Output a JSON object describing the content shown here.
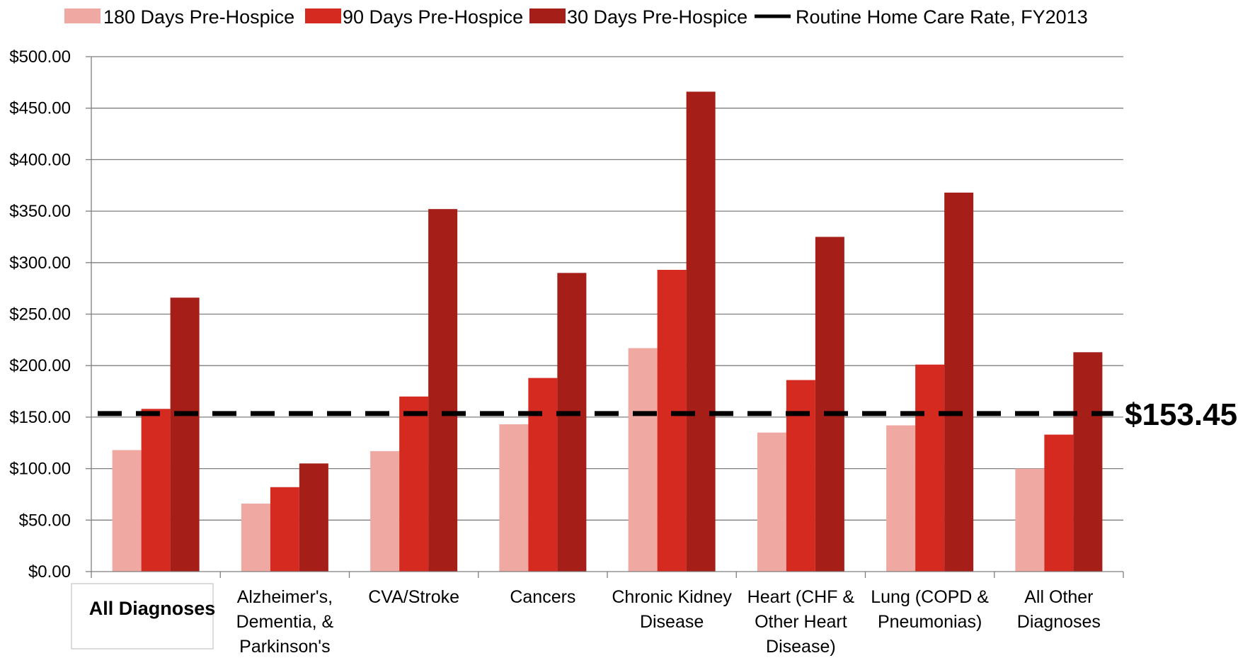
{
  "chart_data": {
    "type": "bar",
    "categories": [
      {
        "lines": [
          "All Diagnoses"
        ],
        "bold": true
      },
      {
        "lines": [
          "Alzheimer's,",
          "Dementia, &",
          "Parkinson's"
        ]
      },
      {
        "lines": [
          "CVA/Stroke"
        ]
      },
      {
        "lines": [
          "Cancers"
        ]
      },
      {
        "lines": [
          "Chronic Kidney",
          "Disease"
        ]
      },
      {
        "lines": [
          "Heart (CHF &",
          "Other Heart",
          "Disease)"
        ]
      },
      {
        "lines": [
          "Lung (COPD &",
          "Pneumonias)"
        ]
      },
      {
        "lines": [
          "All Other",
          "Diagnoses"
        ]
      }
    ],
    "series": [
      {
        "name": "180 Days Pre-Hospice",
        "color": "#f0a8a2",
        "values": [
          118,
          66,
          117,
          143,
          217,
          135,
          142,
          100
        ]
      },
      {
        "name": "90 Days Pre-Hospice",
        "color": "#d42a20",
        "values": [
          158,
          82,
          170,
          188,
          293,
          186,
          201,
          133
        ]
      },
      {
        "name": "30 Days Pre-Hospice",
        "color": "#a51e17",
        "values": [
          266,
          105,
          352,
          290,
          466,
          325,
          368,
          213
        ]
      }
    ],
    "reference_line": {
      "name": "Routine Home Care Rate, FY2013",
      "value": 153.45,
      "label": "$153.45",
      "style": "dashed",
      "color": "#000000"
    },
    "yticks": [
      "$0.00",
      "$50.00",
      "$100.00",
      "$150.00",
      "$200.00",
      "$250.00",
      "$300.00",
      "$350.00",
      "$400.00",
      "$450.00",
      "$500.00"
    ],
    "ylim": [
      0,
      500
    ],
    "grid": true,
    "legend_position": "top",
    "title": "",
    "xlabel": "",
    "ylabel": ""
  }
}
